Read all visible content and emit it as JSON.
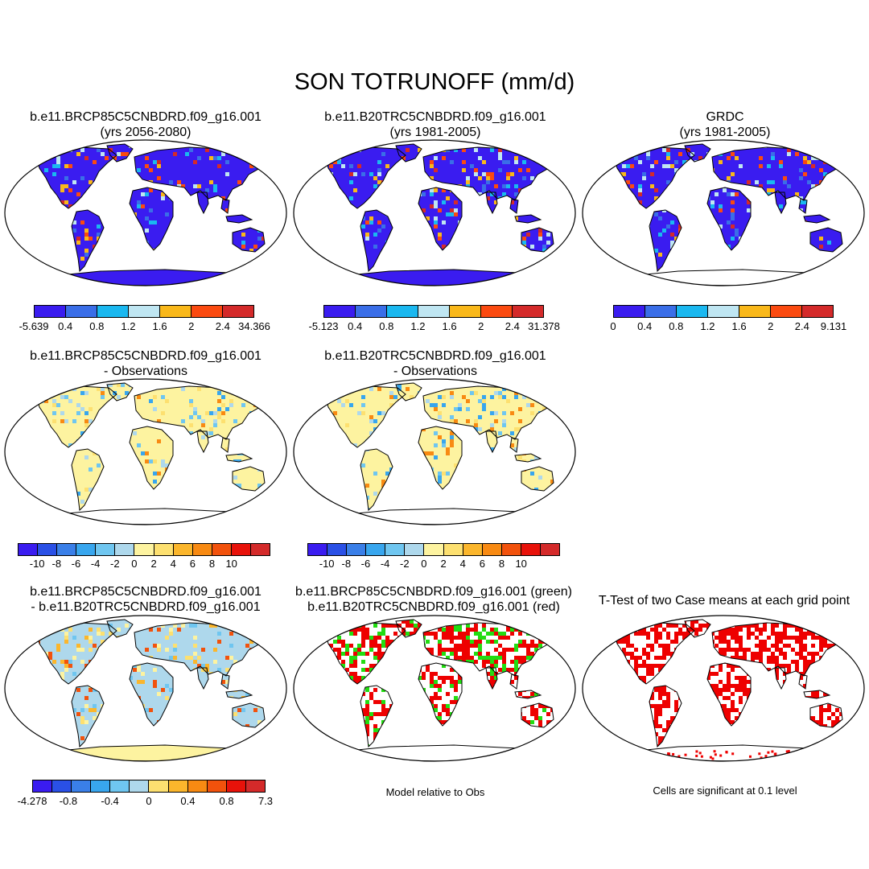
{
  "title": "SON TOTRUNOFF (mm/d)",
  "colors": {
    "runoff_palette": [
      "#3a1cf0",
      "#3a6ee8",
      "#1ab8f0",
      "#bfe6f2",
      "#f9b81a",
      "#fb4a10",
      "#d42a2a"
    ],
    "diff_palette": [
      "#3a1cf0",
      "#2a50e6",
      "#3a7fe8",
      "#38a6ee",
      "#6fc6f0",
      "#aed8ec",
      "#fdf3a0",
      "#fde070",
      "#fbb62c",
      "#f88a12",
      "#f2520c",
      "#e8120a",
      "#d42a2a"
    ],
    "ocean": "#ffffff",
    "model_green": "#22dd11",
    "model_red": "#ee0000"
  },
  "panels": {
    "p1": {
      "title_line1": "b.e11.BRCP85C5CNBDRD.f09_g16.001",
      "title_line2": "(yrs 2056-2080)",
      "colorbar_labels": [
        "-5.639",
        "0.4",
        "0.8",
        "1.2",
        "1.6",
        "2",
        "2.4",
        "34.366"
      ]
    },
    "p2": {
      "title_line1": "b.e11.B20TRC5CNBDRD.f09_g16.001",
      "title_line2": "(yrs 1981-2005)",
      "colorbar_labels": [
        "-5.123",
        "0.4",
        "0.8",
        "1.2",
        "1.6",
        "2",
        "2.4",
        "31.378"
      ]
    },
    "p3": {
      "title_line1": "GRDC",
      "title_line2": "(yrs 1981-2005)",
      "colorbar_labels": [
        "0",
        "0.4",
        "0.8",
        "1.2",
        "1.6",
        "2",
        "2.4",
        "9.131"
      ]
    },
    "p4": {
      "title_line1": "b.e11.BRCP85C5CNBDRD.f09_g16.001",
      "title_line2": "- Observations",
      "colorbar_labels": [
        "-10",
        "-8",
        "-6",
        "-4",
        "-2",
        "0",
        "2",
        "4",
        "6",
        "8",
        "10"
      ]
    },
    "p5": {
      "title_line1": "b.e11.B20TRC5CNBDRD.f09_g16.001",
      "title_line2": "- Observations",
      "colorbar_labels": [
        "-10",
        "-8",
        "-6",
        "-4",
        "-2",
        "0",
        "2",
        "4",
        "6",
        "8",
        "10"
      ]
    },
    "p6": {
      "title_line1": "b.e11.BRCP85C5CNBDRD.f09_g16.001",
      "title_line2": "- b.e11.B20TRC5CNBDRD.f09_g16.001",
      "colorbar_labels": [
        "-4.278",
        "-0.8",
        "-0.4",
        "0",
        "0.4",
        "0.8",
        "7.3"
      ]
    },
    "p7": {
      "title_line1": "b.e11.BRCP85C5CNBDRD.f09_g16.001 (green)",
      "title_line2": "b.e11.B20TRC5CNBDRD.f09_g16.001 (red)",
      "note": "Model relative to Obs"
    },
    "p8": {
      "title_line1": "T-Test of two Case means at each grid point",
      "note": "Cells are significant at 0.1 level"
    }
  }
}
